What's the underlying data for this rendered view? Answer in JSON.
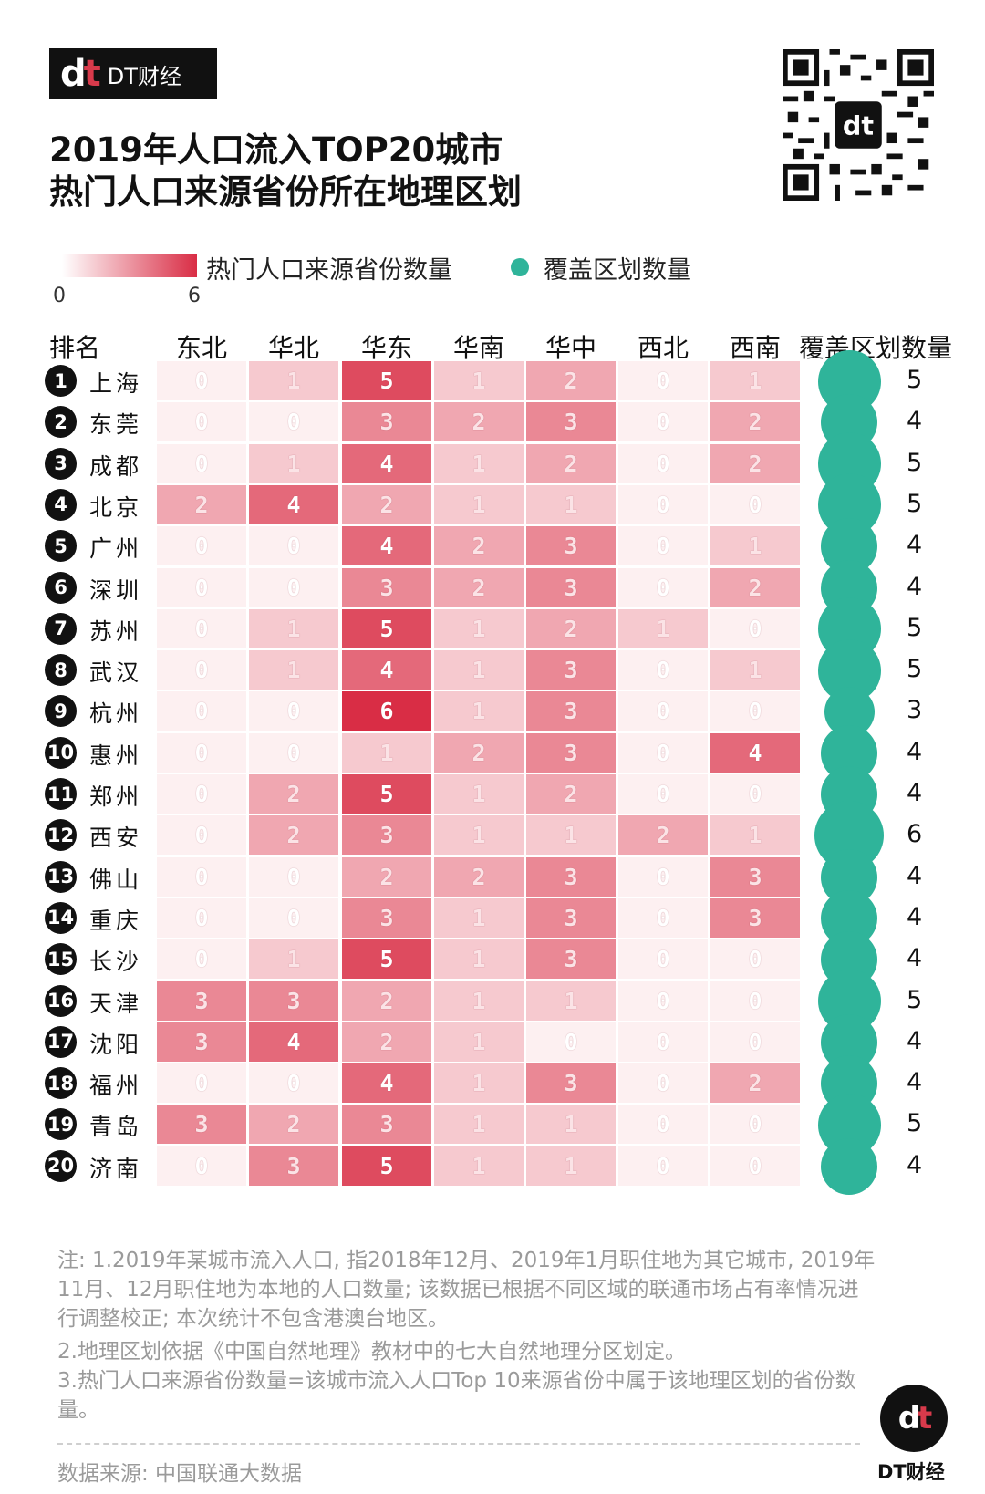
{
  "brand": {
    "logo_mark": "dt",
    "name": "DT财经",
    "bottom_name": "DT财经"
  },
  "title": {
    "line1": "2019年人口流入TOP20城市",
    "line2": "热门人口来源省份所在地理区划"
  },
  "legend": {
    "gradient_label": "热门人口来源省份数量",
    "gradient_min": "0",
    "gradient_max": "6",
    "dot_label": "覆盖区划数量"
  },
  "colors": {
    "heat_low": "#ffffff",
    "heat_high": "#d92d45",
    "coverage": "#2fb49a"
  },
  "chart_data": {
    "type": "heatmap",
    "title": "2019年人口流入TOP20城市 热门人口来源省份所在地理区划",
    "row_header": "排名",
    "columns": [
      "东北",
      "华北",
      "华东",
      "华南",
      "华中",
      "西北",
      "西南"
    ],
    "coverage_header": "覆盖区划数量",
    "value_range": [
      0,
      6
    ],
    "rows": [
      {
        "rank": "1",
        "city": "上海",
        "values": [
          0,
          1,
          5,
          1,
          2,
          0,
          1
        ],
        "coverage": 5
      },
      {
        "rank": "2",
        "city": "东莞",
        "values": [
          0,
          0,
          3,
          2,
          3,
          0,
          2
        ],
        "coverage": 4
      },
      {
        "rank": "3",
        "city": "成都",
        "values": [
          0,
          1,
          4,
          1,
          2,
          0,
          2
        ],
        "coverage": 5
      },
      {
        "rank": "4",
        "city": "北京",
        "values": [
          2,
          4,
          2,
          1,
          1,
          0,
          0
        ],
        "coverage": 5
      },
      {
        "rank": "5",
        "city": "广州",
        "values": [
          0,
          0,
          4,
          2,
          3,
          0,
          1
        ],
        "coverage": 4
      },
      {
        "rank": "6",
        "city": "深圳",
        "values": [
          0,
          0,
          3,
          2,
          3,
          0,
          2
        ],
        "coverage": 4
      },
      {
        "rank": "7",
        "city": "苏州",
        "values": [
          0,
          1,
          5,
          1,
          2,
          1,
          0
        ],
        "coverage": 5
      },
      {
        "rank": "8",
        "city": "武汉",
        "values": [
          0,
          1,
          4,
          1,
          3,
          0,
          1
        ],
        "coverage": 5
      },
      {
        "rank": "9",
        "city": "杭州",
        "values": [
          0,
          0,
          6,
          1,
          3,
          0,
          0
        ],
        "coverage": 3
      },
      {
        "rank": "10",
        "city": "惠州",
        "values": [
          0,
          0,
          1,
          2,
          3,
          0,
          4
        ],
        "coverage": 4
      },
      {
        "rank": "11",
        "city": "郑州",
        "values": [
          0,
          2,
          5,
          1,
          2,
          0,
          0
        ],
        "coverage": 4
      },
      {
        "rank": "12",
        "city": "西安",
        "values": [
          0,
          2,
          3,
          1,
          1,
          2,
          1
        ],
        "coverage": 6
      },
      {
        "rank": "13",
        "city": "佛山",
        "values": [
          0,
          0,
          2,
          2,
          3,
          0,
          3
        ],
        "coverage": 4
      },
      {
        "rank": "14",
        "city": "重庆",
        "values": [
          0,
          0,
          3,
          1,
          3,
          0,
          3
        ],
        "coverage": 4
      },
      {
        "rank": "15",
        "city": "长沙",
        "values": [
          0,
          1,
          5,
          1,
          3,
          0,
          0
        ],
        "coverage": 4
      },
      {
        "rank": "16",
        "city": "天津",
        "values": [
          3,
          3,
          2,
          1,
          1,
          0,
          0
        ],
        "coverage": 5
      },
      {
        "rank": "17",
        "city": "沈阳",
        "values": [
          3,
          4,
          2,
          1,
          0,
          0,
          0
        ],
        "coverage": 4
      },
      {
        "rank": "18",
        "city": "福州",
        "values": [
          0,
          0,
          4,
          1,
          3,
          0,
          2
        ],
        "coverage": 4
      },
      {
        "rank": "19",
        "city": "青岛",
        "values": [
          3,
          2,
          3,
          1,
          1,
          0,
          0
        ],
        "coverage": 5
      },
      {
        "rank": "20",
        "city": "济南",
        "values": [
          0,
          3,
          5,
          1,
          1,
          0,
          0
        ],
        "coverage": 4
      }
    ]
  },
  "notes": [
    "注: 1.2019年某城市流入人口, 指2018年12月、2019年1月职住地为其它城市, 2019年11月、12月职住地为本地的人口数量; 该数据已根据不同区域的联通市场占有率情况进行调整校正; 本次统计不包含港澳台地区。",
    "2.地理区划依据《中国自然地理》教材中的七大自然地理分区划定。",
    "3.热门人口来源省份数量=该城市流入人口Top 10来源省份中属于该地理区划的省份数量。"
  ],
  "source": "数据来源: 中国联通大数据"
}
